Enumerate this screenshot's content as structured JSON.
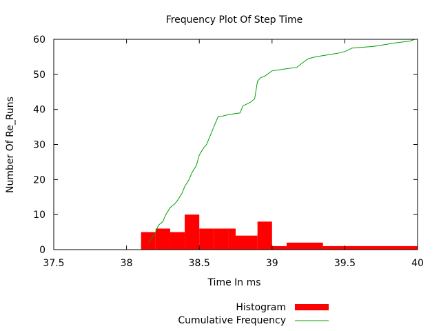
{
  "chart_data": {
    "type": "bar",
    "title": "Frequency Plot Of Step Time",
    "xlabel": "Time In ms",
    "ylabel": "Number Of Re_Runs",
    "xlim": [
      37.5,
      40
    ],
    "ylim": [
      0,
      60
    ],
    "x_ticks": [
      "37.5",
      "38",
      "38.5",
      "39",
      "39.5",
      "40"
    ],
    "y_ticks": [
      "0",
      "10",
      "20",
      "30",
      "40",
      "50",
      "60"
    ],
    "grid": false,
    "legend_position": "bottom-right",
    "series": [
      {
        "name": "Histogram",
        "type": "bar",
        "color": "#ff0000",
        "bins": [
          {
            "x0": 38.1,
            "x1": 38.2,
            "value": 5
          },
          {
            "x0": 38.2,
            "x1": 38.3,
            "value": 6
          },
          {
            "x0": 38.3,
            "x1": 38.4,
            "value": 5
          },
          {
            "x0": 38.4,
            "x1": 38.5,
            "value": 10
          },
          {
            "x0": 38.5,
            "x1": 38.6,
            "value": 6
          },
          {
            "x0": 38.6,
            "x1": 38.7,
            "value": 6
          },
          {
            "x0": 38.7,
            "x1": 38.75,
            "value": 6
          },
          {
            "x0": 38.75,
            "x1": 38.9,
            "value": 4
          },
          {
            "x0": 38.9,
            "x1": 39.0,
            "value": 8
          },
          {
            "x0": 39.0,
            "x1": 39.1,
            "value": 1
          },
          {
            "x0": 39.1,
            "x1": 39.35,
            "value": 2
          },
          {
            "x0": 39.35,
            "x1": 40.0,
            "value": 1
          }
        ]
      },
      {
        "name": "Cumulative Frequency",
        "type": "line",
        "color": "#00a000",
        "x": [
          38.15,
          38.17,
          38.2,
          38.22,
          38.25,
          38.27,
          38.3,
          38.33,
          38.35,
          38.38,
          38.4,
          38.43,
          38.45,
          38.48,
          38.5,
          38.53,
          38.55,
          38.58,
          38.6,
          38.63,
          38.65,
          38.7,
          38.78,
          38.8,
          38.85,
          38.88,
          38.9,
          38.92,
          38.95,
          39.0,
          39.08,
          39.17,
          39.2,
          39.25,
          39.3,
          39.45,
          39.5,
          39.55,
          39.7,
          39.85,
          39.95,
          39.98
        ],
        "y": [
          2,
          3,
          5,
          7,
          8,
          10,
          12,
          13,
          14,
          16,
          18,
          20,
          22,
          24,
          27,
          29,
          30,
          33,
          35,
          38,
          38,
          38.5,
          39,
          41,
          42,
          43,
          48,
          49,
          49.5,
          51,
          51.5,
          52,
          53,
          54.5,
          55,
          56,
          56.5,
          57.5,
          58,
          59,
          59.5,
          60
        ]
      }
    ]
  }
}
